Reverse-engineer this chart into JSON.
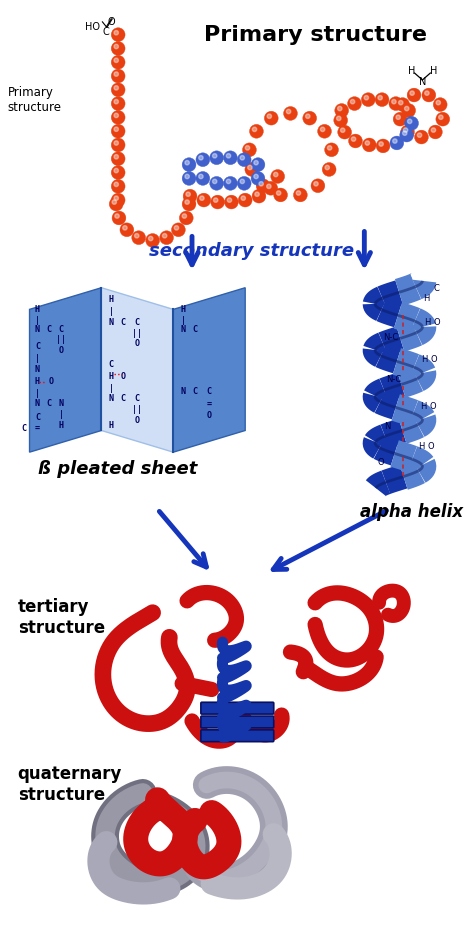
{
  "title": "Primary structure",
  "label_primary_side": "Primary\nstructure",
  "label_secondary": "secondary structure",
  "label_beta": "ß pleated sheet",
  "label_alpha": "alpha helix",
  "label_tertiary": "tertiary\nstructure",
  "label_quaternary": "quaternary\nstructure",
  "bg_color": "#ffffff",
  "bead_color_orange": "#e84010",
  "bead_color_blue": "#4060cc",
  "arrow_color": "#1535bb",
  "text_color_dark": "#000000",
  "sheet_panel_dark": "#4070cc",
  "sheet_panel_mid": "#7099dd",
  "sheet_panel_light": "#b0ccee",
  "helix_dark": "#1535aa",
  "helix_light": "#5580d0",
  "tertiary_red": "#cc1010",
  "tertiary_orange": "#e05010",
  "tertiary_blue": "#1535aa",
  "quaternary_red": "#cc1010",
  "quaternary_gray_dark": "#707080",
  "quaternary_gray_light": "#c0c0cc"
}
